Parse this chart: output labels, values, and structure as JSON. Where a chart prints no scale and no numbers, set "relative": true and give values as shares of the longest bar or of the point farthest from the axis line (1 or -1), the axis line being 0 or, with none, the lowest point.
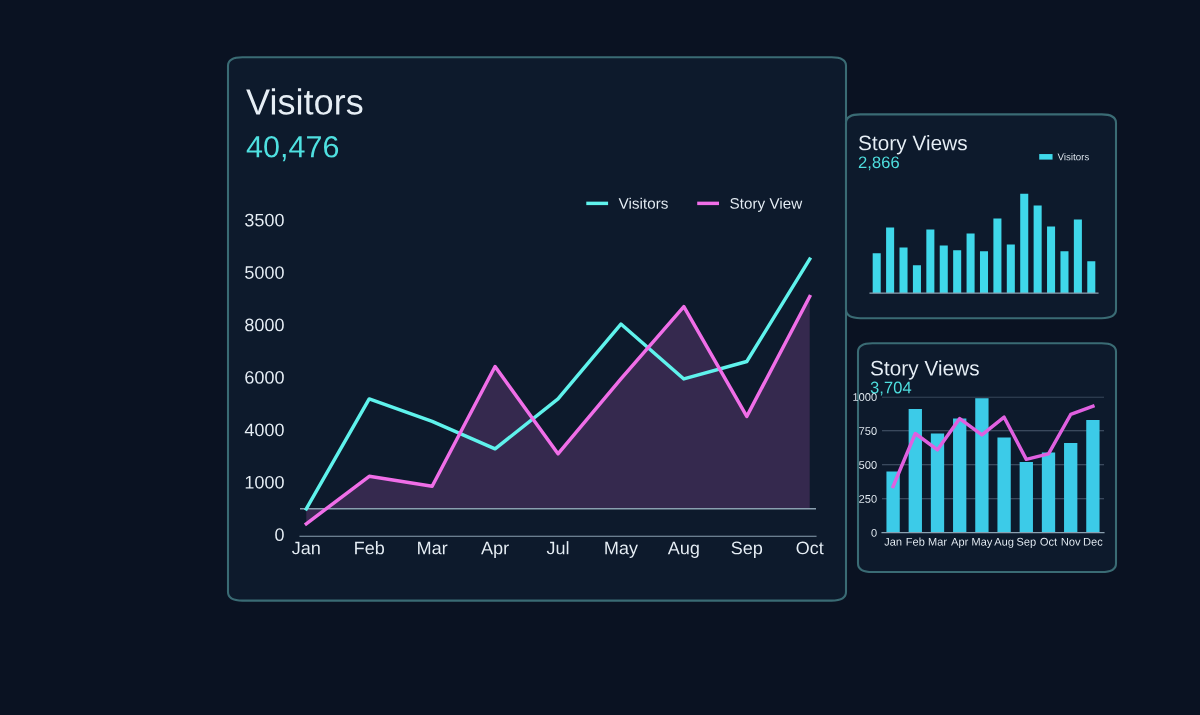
{
  "chart_data": [
    {
      "type": "line",
      "title": "Visitors",
      "subtitle": "40,476",
      "categories": [
        "Jan",
        "Feb",
        "Mar",
        "Apr",
        "Jul",
        "May",
        "Aug",
        "Sep",
        "Oct"
      ],
      "series": [
        {
          "name": "Visitors",
          "color": "#5ff2ec",
          "type": "line",
          "values": [
            0.0,
            0.44,
            0.35,
            0.24,
            0.44,
            0.74,
            0.52,
            0.59,
            1.0
          ]
        },
        {
          "name": "Story View",
          "color": "#f06ee8",
          "type": "area",
          "values": [
            -0.06,
            0.13,
            0.09,
            0.57,
            0.22,
            0.52,
            0.81,
            0.37,
            0.85
          ]
        }
      ],
      "relative": true,
      "annotations": [
        "3500",
        "5000",
        "8000",
        "6000",
        "4000",
        "1000",
        "0"
      ],
      "legend": "top right"
    },
    {
      "type": "bar",
      "title": "Story Views",
      "subtitle": "2,866",
      "relative": true,
      "categories": [
        null,
        null,
        null,
        null,
        null,
        null,
        null,
        null,
        null,
        null,
        null,
        null,
        null,
        null,
        null,
        null,
        null
      ],
      "series": [
        {
          "name": "Visitors",
          "color": "#3fd8ea",
          "values": [
            0.4,
            0.66,
            0.46,
            0.28,
            0.64,
            0.48,
            0.43,
            0.6,
            0.42,
            0.75,
            0.49,
            1.0,
            0.88,
            0.67,
            0.42,
            0.74,
            0.32
          ]
        }
      ],
      "legend": "top right"
    },
    {
      "type": "bar",
      "title": "Story Views",
      "subtitle": "3,704",
      "categories": [
        "Jan",
        "Feb",
        "Mar",
        "Apr",
        "May",
        "Aug",
        "Sep",
        "Oct",
        "Nov",
        "Dec"
      ],
      "series": [
        {
          "color": "#3ccbe8",
          "type": "bar",
          "values": [
            450,
            910,
            730,
            840,
            990,
            700,
            520,
            590,
            660,
            830
          ]
        },
        {
          "color": "#e060e0",
          "type": "line",
          "values": [
            340,
            730,
            610,
            840,
            720,
            850,
            540,
            580,
            870,
            930
          ]
        }
      ],
      "ylim": [
        0,
        1000
      ],
      "yticks": [
        0,
        250,
        500,
        750,
        1000
      ],
      "grid": "y"
    }
  ]
}
